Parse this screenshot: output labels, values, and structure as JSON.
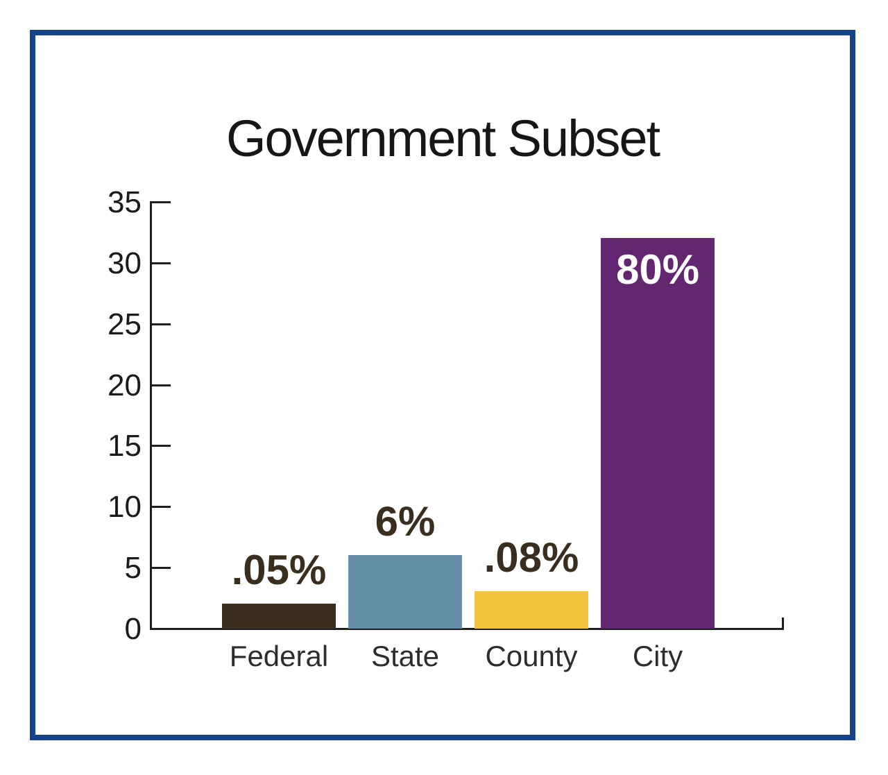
{
  "title": "Government Subset",
  "frame": {
    "border_color": "#16428c",
    "background": "#ffffff"
  },
  "chart_data": {
    "type": "bar",
    "title": "Government Subset",
    "categories": [
      "Federal",
      "State",
      "County",
      "City"
    ],
    "values": [
      2,
      6,
      3,
      32
    ],
    "bar_labels": [
      ".05%",
      "6%",
      ".08%",
      "80%"
    ],
    "bar_label_placement": [
      "above",
      "above",
      "above",
      "inside"
    ],
    "bar_colors": [
      "#3a2f1e",
      "#6690a8",
      "#f0c43d",
      "#622770"
    ],
    "bar_label_colors": [
      "#3a2e1e",
      "#3a2e1e",
      "#3a2e1e",
      "#ffffff"
    ],
    "ylim": [
      0,
      35
    ],
    "yticks": [
      0,
      5,
      10,
      15,
      20,
      25,
      30,
      35
    ],
    "grid": false,
    "legend": false,
    "axis_color": "#1f1f1f",
    "tick_label_color": "#1b1b1b",
    "category_label_color": "#2d2d2d"
  }
}
